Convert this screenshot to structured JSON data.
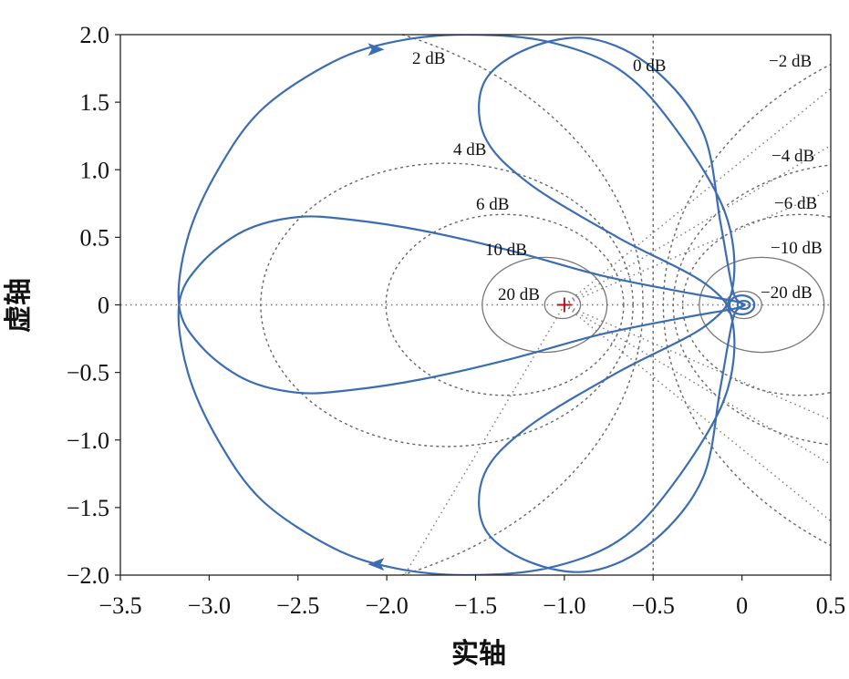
{
  "chart_data": {
    "type": "line",
    "xlabel": "实轴",
    "ylabel": "虚轴",
    "xlim": [
      -3.5,
      0.5
    ],
    "ylim": [
      -2.0,
      2.0
    ],
    "x_ticks": [
      "−3.5",
      "−3.0",
      "−2.5",
      "−2.0",
      "−1.5",
      "−1.0",
      "−0.5",
      "0",
      "0.5"
    ],
    "y_ticks": [
      "2.0",
      "1.5",
      "1.0",
      "0.5",
      "0",
      "−0.5",
      "−1.0",
      "−1.5",
      "−2.0"
    ],
    "critical_point": [
      -1,
      0
    ],
    "contours": [
      {
        "label": "20 dB",
        "M_db": 20
      },
      {
        "label": "10 dB",
        "M_db": 10
      },
      {
        "label": "6 dB",
        "M_db": 6
      },
      {
        "label": "4 dB",
        "M_db": 4
      },
      {
        "label": "2 dB",
        "M_db": 2
      },
      {
        "label": "0 dB",
        "M_db": 0
      },
      {
        "label": "−2 dB",
        "M_db": -2
      },
      {
        "label": "−4 dB",
        "M_db": -4
      },
      {
        "label": "−6 dB",
        "M_db": -6
      },
      {
        "label": "−10 dB",
        "M_db": -10
      },
      {
        "label": "−20 dB",
        "M_db": -20
      }
    ],
    "series": [
      {
        "points": [
          [
            0.02,
            0.0
          ],
          [
            -0.05,
            0.03
          ],
          [
            -0.35,
            0.1
          ],
          [
            -0.8,
            0.22
          ],
          [
            -1.3,
            0.4
          ],
          [
            -1.8,
            0.55
          ],
          [
            -2.2,
            0.63
          ],
          [
            -2.5,
            0.65
          ],
          [
            -2.8,
            0.55
          ],
          [
            -3.05,
            0.3
          ],
          [
            -3.17,
            0.0
          ],
          [
            -3.12,
            -0.5
          ],
          [
            -2.95,
            -1.0
          ],
          [
            -2.7,
            -1.45
          ],
          [
            -2.3,
            -1.8
          ],
          [
            -1.95,
            -1.95
          ],
          [
            -1.55,
            -2.0
          ],
          [
            -1.1,
            -1.95
          ],
          [
            -0.7,
            -1.75
          ],
          [
            -0.4,
            -1.35
          ],
          [
            -0.1,
            -0.7
          ],
          [
            -0.05,
            -0.15
          ],
          [
            -0.2,
            0.15
          ],
          [
            -0.7,
            0.5
          ],
          [
            -1.2,
            0.9
          ],
          [
            -1.45,
            1.25
          ],
          [
            -1.45,
            1.65
          ],
          [
            -1.2,
            1.9
          ],
          [
            -0.85,
            1.97
          ],
          [
            -0.5,
            1.75
          ],
          [
            -0.22,
            1.28
          ],
          [
            -0.12,
            0.6
          ],
          [
            -0.05,
            0.1
          ],
          [
            0.0,
            0.0
          ],
          [
            -0.05,
            -0.1
          ],
          [
            -0.12,
            -0.6
          ],
          [
            -0.22,
            -1.28
          ],
          [
            -0.5,
            -1.75
          ],
          [
            -0.85,
            -1.97
          ],
          [
            -1.2,
            -1.9
          ],
          [
            -1.45,
            -1.65
          ],
          [
            -1.45,
            -1.25
          ],
          [
            -1.2,
            -0.9
          ],
          [
            -0.7,
            -0.5
          ],
          [
            -0.2,
            -0.15
          ],
          [
            -0.05,
            0.15
          ],
          [
            -0.1,
            0.7
          ],
          [
            -0.4,
            1.35
          ],
          [
            -0.7,
            1.75
          ],
          [
            -1.1,
            1.95
          ],
          [
            -1.55,
            2.0
          ],
          [
            -1.95,
            1.95
          ],
          [
            -2.3,
            1.8
          ],
          [
            -2.7,
            1.45
          ],
          [
            -2.95,
            1.0
          ],
          [
            -3.12,
            0.5
          ],
          [
            -3.17,
            0.0
          ],
          [
            -3.05,
            -0.3
          ],
          [
            -2.8,
            -0.55
          ],
          [
            -2.5,
            -0.65
          ],
          [
            -2.2,
            -0.63
          ],
          [
            -1.8,
            -0.55
          ],
          [
            -1.3,
            -0.4
          ],
          [
            -0.8,
            -0.22
          ],
          [
            -0.35,
            -0.1
          ],
          [
            -0.05,
            -0.03
          ],
          [
            0.02,
            0.0
          ]
        ]
      }
    ],
    "arrows": [
      {
        "x": -2.08,
        "y": 1.89,
        "direction": "right"
      },
      {
        "x": -2.04,
        "y": -1.92,
        "direction": "left"
      }
    ],
    "grid": false
  }
}
